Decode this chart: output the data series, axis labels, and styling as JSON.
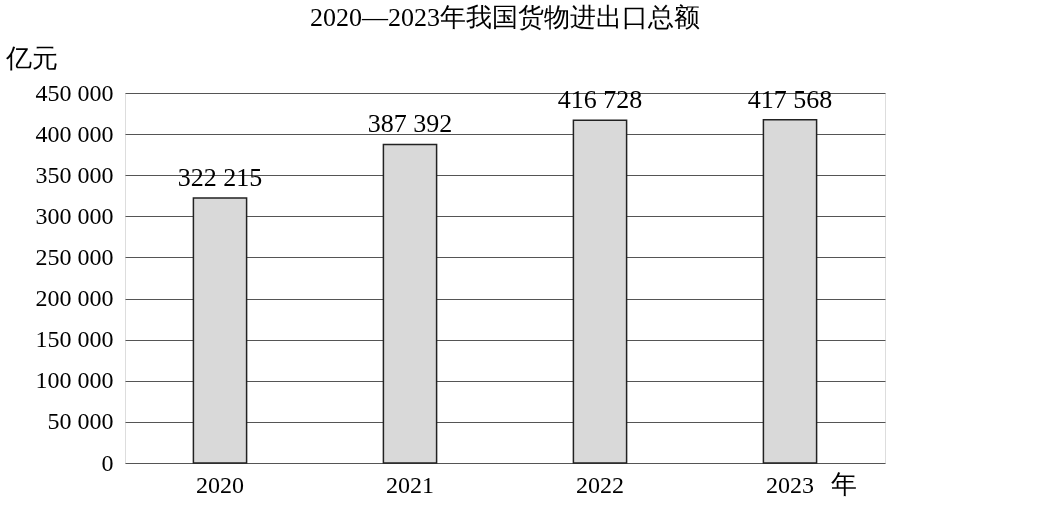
{
  "chart_data": {
    "type": "bar",
    "title": "2020—2023年我国货物进出口总额",
    "ylabel": "亿元",
    "xlabel": "年",
    "categories": [
      "2020",
      "2021",
      "2022",
      "2023"
    ],
    "values": [
      322215,
      387392,
      416728,
      417568
    ],
    "value_labels": [
      "322 215",
      "387 392",
      "416 728",
      "417 568"
    ],
    "color": "#d9d9d9",
    "ylim": [
      0,
      450000
    ],
    "yticks": [
      0,
      {
        "value": 50000,
        "label": "50 000"
      },
      {
        "value": 100000,
        "label": "100 000"
      },
      {
        "value": 150000,
        "label": "150 000"
      },
      {
        "value": 200000,
        "label": "200 000"
      },
      {
        "value": 250000,
        "label": "250 000"
      },
      {
        "value": 300000,
        "label": "300 000"
      },
      {
        "value": 350000,
        "label": "350 000"
      },
      {
        "value": 400000,
        "label": "400 000"
      },
      {
        "value": 450000,
        "label": "450 000"
      }
    ],
    "grid": "y"
  }
}
